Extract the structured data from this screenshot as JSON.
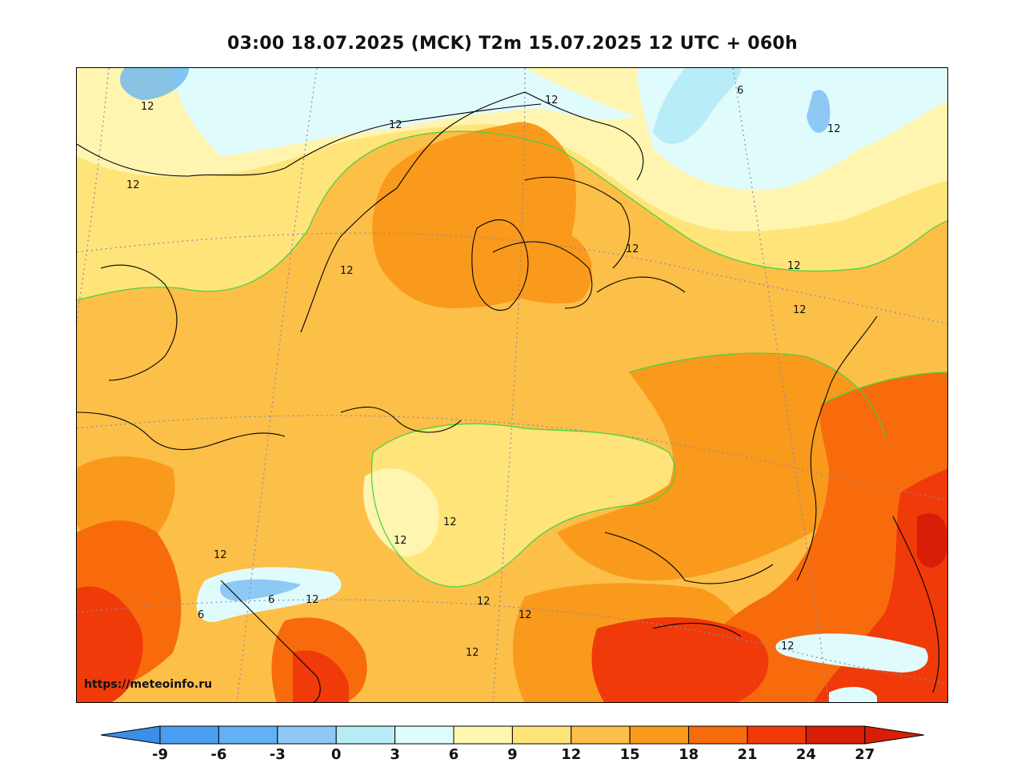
{
  "title": "03:00 18.07.2025 (MCK) T2m 15.07.2025 12 UTC + 060h",
  "watermark": "https://meteoinfo.ru",
  "contour_labels": [
    "12",
    "12",
    "12",
    "12",
    "12",
    "12",
    "12",
    "12",
    "12",
    "12",
    "12",
    "12",
    "12",
    "12",
    "12",
    "12",
    "12",
    "6",
    "6",
    "6"
  ],
  "colorbar": {
    "ticks": [
      "-9",
      "-6",
      "-3",
      "0",
      "3",
      "6",
      "9",
      "12",
      "15",
      "18",
      "21",
      "24",
      "27"
    ],
    "colors": [
      "#3a8ee6",
      "#4a9ef0",
      "#62b1f4",
      "#8ec9f6",
      "#b8ecf6",
      "#e0fbfc",
      "#fff7b0",
      "#ffe47a",
      "#fcbf48",
      "#f99a1c",
      "#f76b0c",
      "#f03a0a",
      "#d81e06"
    ],
    "low_extend_color": "#3a8ee6",
    "high_extend_color": "#d81e06"
  }
}
